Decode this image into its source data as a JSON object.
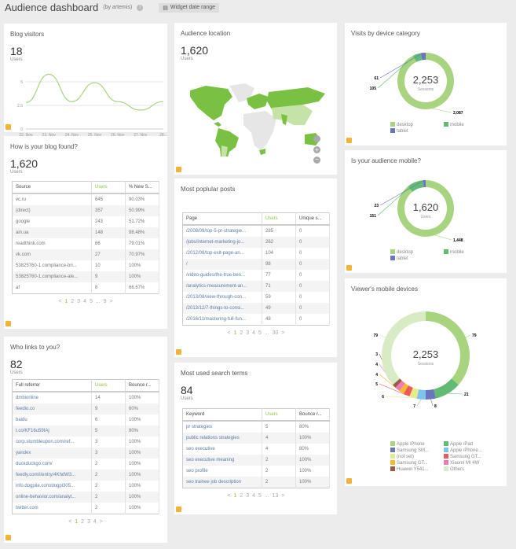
{
  "header": {
    "title": "Audience dashboard",
    "by": "(by artemis)",
    "date_range": "Widget date range"
  },
  "colors": {
    "accent": "#8cc63f",
    "footer_icon": "#f5b335"
  },
  "blog_visitors": {
    "title": "Blog visitors",
    "value": "18",
    "unit": "Users",
    "chart_data": {
      "type": "line",
      "categories": [
        "22. Nov",
        "23. Nov",
        "24. Nov",
        "25. Nov",
        "26. Nov",
        "27. Nov",
        "28..."
      ],
      "values": [
        2.8,
        5.8,
        2.9,
        4.9,
        2.9,
        2.0,
        2.9
      ],
      "yticks": [
        "0",
        "2.5",
        "5"
      ],
      "ylim": [
        0,
        6.5
      ],
      "color": "#a8d47f",
      "grid": true
    }
  },
  "blog_found": {
    "title": "How is your blog found?",
    "value": "1,620",
    "unit": "Users",
    "columns": [
      "Source",
      "Users",
      "% New S..."
    ],
    "rows": [
      [
        "vc.ru",
        "645",
        "90.03%"
      ],
      [
        "(direct)",
        "357",
        "50.99%"
      ],
      [
        "google",
        "243",
        "51.72%"
      ],
      [
        "ain.ua",
        "148",
        "88.48%"
      ],
      [
        "readthink.com",
        "66",
        "79.01%"
      ],
      [
        "vk.com",
        "27",
        "70.97%"
      ],
      [
        "53825760-1.compliance-bri...",
        "10",
        "100%"
      ],
      [
        "53825760-1.compliance-ale...",
        "9",
        "100%"
      ],
      [
        "af",
        "8",
        "66.67%"
      ]
    ],
    "pagination": {
      "prev": "<",
      "pages": [
        "1",
        "2",
        "3",
        "4",
        "5",
        "...",
        "9"
      ],
      "current": "1",
      "next": ">"
    }
  },
  "who_links": {
    "title": "Who links to you?",
    "value": "82",
    "unit": "Users",
    "columns": [
      "Full referrer",
      "Users",
      "Bounce r..."
    ],
    "rows": [
      [
        "dmbionline",
        "14",
        "100%"
      ],
      [
        "feedio.co",
        "9",
        "60%"
      ],
      [
        "baidu",
        "6",
        "100%"
      ],
      [
        "t.co/KF16u59IAj",
        "5",
        "80%"
      ],
      [
        "corp.stumbleupon.com/ref...",
        "3",
        "100%"
      ],
      [
        "yandex",
        "3",
        "100%"
      ],
      [
        "duckduckgo.com/",
        "2",
        "100%"
      ],
      [
        "feedly.com/i/entry/4KhdW3...",
        "2",
        "100%"
      ],
      [
        "info.dogpile.com/dogpl305...",
        "2",
        "100%"
      ],
      [
        "online-behavior.com/analyt...",
        "2",
        "100%"
      ],
      [
        "twitter.com",
        "2",
        "100%"
      ]
    ],
    "pagination": {
      "prev": "<",
      "pages": [
        "1",
        "2",
        "3",
        "4"
      ],
      "current": "1",
      "next": ">"
    }
  },
  "audience_location": {
    "title": "Audience location",
    "value": "1,620",
    "unit": "Users",
    "map_color": "#7ac143",
    "map_light": "#c5e3a8",
    "map_empty": "#e6e6e6"
  },
  "popular_posts": {
    "title": "Most poplular posts",
    "columns": [
      "Page",
      "Users",
      "Unique s..."
    ],
    "rows": [
      [
        "/2008/09/top-5-pr-strategie...",
        "285",
        "0"
      ],
      [
        "/jobs/internet-marketing-jo...",
        "262",
        "0"
      ],
      [
        "/2012/08/top-exit-page-an...",
        "104",
        "0"
      ],
      [
        "/",
        "98",
        "0"
      ],
      [
        "/video-guides/the-true-ben...",
        "77",
        "0"
      ],
      [
        "/analytics-measurement-an...",
        "71",
        "0"
      ],
      [
        "/2013/08/view-through-con...",
        "59",
        "0"
      ],
      [
        "/2013/12/7-things-to-consi...",
        "49",
        "0"
      ],
      [
        "/2016/11/mastering-full-fun...",
        "48",
        "0"
      ]
    ],
    "pagination": {
      "prev": "<",
      "pages": [
        "1",
        "2",
        "3",
        "4",
        "5",
        "...",
        "30"
      ],
      "current": "1",
      "next": ">"
    }
  },
  "search_terms": {
    "title": "Most used search terms",
    "value": "84",
    "unit": "Users",
    "columns": [
      "Keyword",
      "Users",
      "Bounce r..."
    ],
    "rows": [
      [
        "pr strategies",
        "5",
        "80%"
      ],
      [
        "public relations strategies",
        "4",
        "100%"
      ],
      [
        "seo executive",
        "4",
        "80%"
      ],
      [
        "seo executive meaning",
        "2",
        "100%"
      ],
      [
        "seo profile",
        "2",
        "100%"
      ],
      [
        "seo trainee job description",
        "2",
        "100%"
      ]
    ],
    "pagination": {
      "prev": "<",
      "pages": [
        "1",
        "2",
        "3",
        "4",
        "5",
        "...",
        "13"
      ],
      "current": "1",
      "next": ">"
    }
  },
  "device_category": {
    "title": "Visits by device category",
    "center_value": "2,253",
    "center_unit": "Sessions",
    "chart_data": {
      "type": "pie",
      "donut": true,
      "slices": [
        {
          "name": "desktop",
          "value": 2087,
          "label": "2,087",
          "color": "#a8d47f"
        },
        {
          "name": "mobile",
          "value": 105,
          "label": "105",
          "color": "#63ba74"
        },
        {
          "name": "tablet",
          "value": 61,
          "label": "61",
          "color": "#6a75c0"
        }
      ]
    }
  },
  "audience_mobile": {
    "title": "Is your audience mobile?",
    "center_value": "1,620",
    "center_unit": "Users",
    "chart_data": {
      "type": "pie",
      "donut": true,
      "slices": [
        {
          "name": "desktop",
          "value": 1448,
          "label": "1,448",
          "color": "#a8d47f"
        },
        {
          "name": "mobile",
          "value": 151,
          "label": "151",
          "color": "#63ba74"
        },
        {
          "name": "tablet",
          "value": 23,
          "label": "23",
          "color": "#6a75c0"
        }
      ]
    }
  },
  "mobile_devices": {
    "title": "Viewer's mobile devices",
    "center_value": "2,253",
    "center_unit": "Sessions",
    "chart_data": {
      "type": "pie",
      "donut": true,
      "slices": [
        {
          "name": "Apple iPhone",
          "value": 79,
          "label": "79",
          "color": "#a8d47f"
        },
        {
          "name": "Apple iPad",
          "value": 21,
          "label": "21",
          "color": "#63ba74"
        },
        {
          "name": "Samsung SM...",
          "value": 8,
          "label": "8",
          "color": "#6a75c0"
        },
        {
          "name": "Apple iPhone...",
          "value": 7,
          "label": "7",
          "color": "#7ec3ef"
        },
        {
          "name": "(not set)",
          "value": 6,
          "label": "6",
          "color": "#e2ec8a"
        },
        {
          "name": "Samsung GT...",
          "value": 5,
          "label": "5",
          "color": "#ec5a53"
        },
        {
          "name": "Samsung GT...",
          "value": 4,
          "label": "4",
          "color": "#f7b733"
        },
        {
          "name": "Xiaomi MI 4W",
          "value": 4,
          "label": "4",
          "color": "#f07bb0"
        },
        {
          "name": "Huawei Y541...",
          "value": 3,
          "label": "3",
          "color": "#9c5a4f"
        },
        {
          "name": "Others",
          "value": 79,
          "label": "79",
          "color": "#d9ebc4"
        }
      ]
    }
  }
}
